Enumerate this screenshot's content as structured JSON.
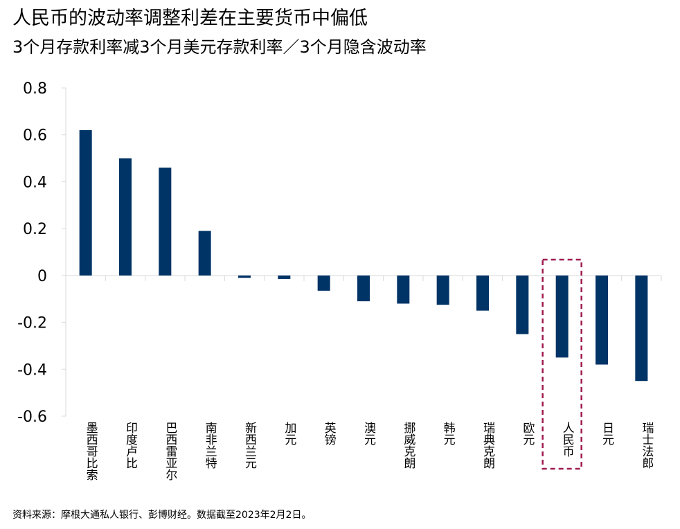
{
  "title": "人民币的波动率调整利差在主要货币中偏低",
  "subtitle": "3个月存款利率减3个月美元存款利率／3个月隐含波动率",
  "source": "资料来源：摩根大通私人银行、彭博财经。数据截至2023年2月2日。",
  "colors": {
    "bar": "#003366",
    "highlight": "#9e1b4f",
    "axis": "#d9d9d9",
    "text": "#000000"
  },
  "chart_data": {
    "type": "bar",
    "title": "人民币的波动率调整利差在主要货币中偏低",
    "subtitle": "3个月存款利率减3个月美元存款利率／3个月隐含波动率",
    "categories": [
      "墨西哥比索",
      "印度卢比",
      "巴西雷亚尔",
      "南非兰特",
      "新西兰元",
      "加元",
      "英镑",
      "澳元",
      "挪威克朗",
      "韩元",
      "瑞典克朗",
      "欧元",
      "人民币",
      "日元",
      "瑞士法郎"
    ],
    "values": [
      0.62,
      0.5,
      0.46,
      0.19,
      -0.01,
      -0.015,
      -0.065,
      -0.11,
      -0.12,
      -0.125,
      -0.15,
      -0.25,
      -0.35,
      -0.38,
      -0.45
    ],
    "yticks": [
      0.8,
      0.6,
      0.4,
      0.2,
      0,
      -0.2,
      -0.4,
      -0.6
    ],
    "ytick_labels": [
      "0.8",
      "0.6",
      "0.4",
      "0.2",
      "0",
      "-0.2",
      "-0.4",
      "-0.6"
    ],
    "ylim": [
      -0.6,
      0.8
    ],
    "xlabel": "",
    "ylabel": "",
    "highlight": "人民币",
    "grid": false
  }
}
